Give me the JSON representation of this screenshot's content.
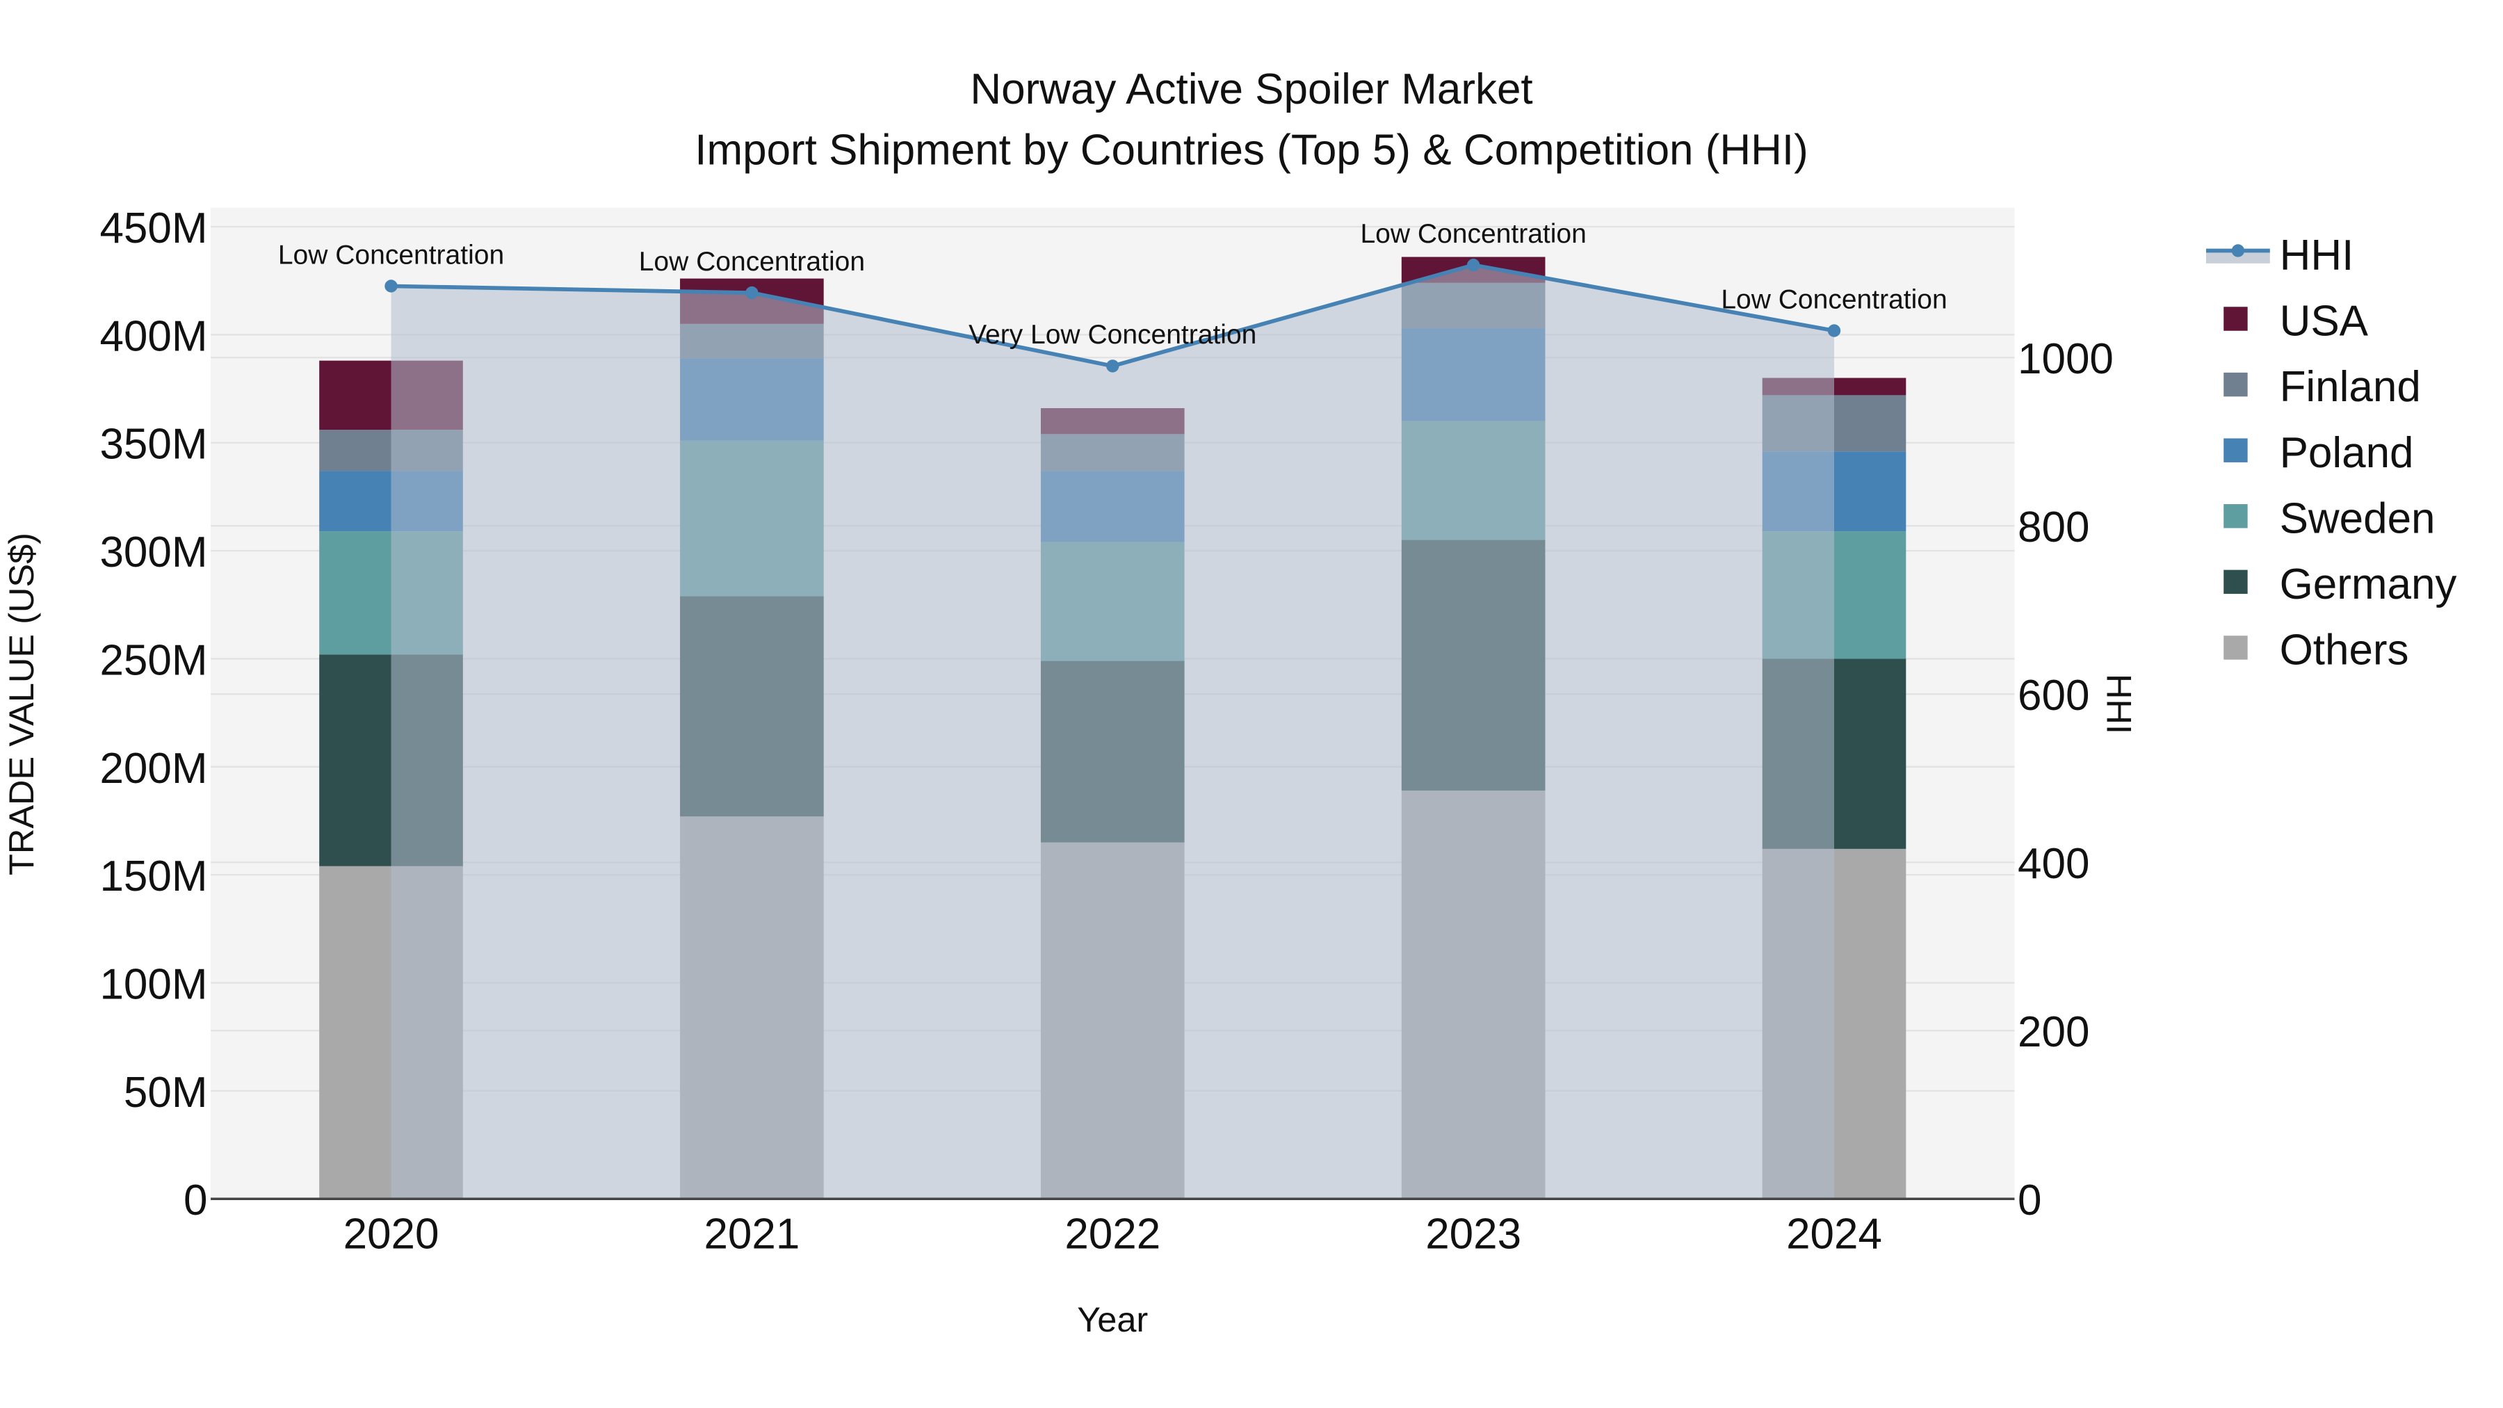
{
  "title": {
    "line1": "Norway Active Spoiler Market",
    "line2": "Import Shipment by Countries (Top 5) & Competition (HHI)"
  },
  "axes": {
    "x_title": "Year",
    "y_left_title": "TRADE VALUE (US$)",
    "y_right_title": "HHI",
    "y_left_ticks": [
      "0",
      "50M",
      "100M",
      "150M",
      "200M",
      "250M",
      "300M",
      "350M",
      "400M",
      "450M"
    ],
    "y_right_ticks": [
      "0",
      "200",
      "400",
      "600",
      "800",
      "1000"
    ],
    "x_ticks": [
      "2020",
      "2021",
      "2022",
      "2023",
      "2024"
    ]
  },
  "legend": {
    "items": [
      {
        "label": "HHI",
        "type": "line",
        "color": "#4682b4"
      },
      {
        "label": "USA",
        "type": "box",
        "color": "#601436"
      },
      {
        "label": "Finland",
        "type": "box",
        "color": "#708090"
      },
      {
        "label": "Poland",
        "type": "box",
        "color": "#4682b4"
      },
      {
        "label": "Sweden",
        "type": "box",
        "color": "#5f9ea0"
      },
      {
        "label": "Germany",
        "type": "box",
        "color": "#2f4f4f"
      },
      {
        "label": "Others",
        "type": "box",
        "color": "#a9a9a9"
      }
    ]
  },
  "annotations": [
    "Low Concentration",
    "Low Concentration",
    "Very Low Concentration",
    "Low Concentration",
    "Low Concentration"
  ],
  "colors": {
    "plot_bg": "#f4f4f4",
    "grid": "#e2e2e2",
    "hhi_line": "#4682b4",
    "hhi_fill": "rgba(176,190,206,0.55)"
  },
  "chart_data": {
    "type": "bar",
    "stacked": true,
    "title": "Norway Active Spoiler Market — Import Shipment by Countries (Top 5) & Competition (HHI)",
    "xlabel": "Year",
    "ylabel": "TRADE VALUE (US$)",
    "y2label": "HHI",
    "ylim": [
      0,
      450000000
    ],
    "y2lim": [
      0,
      1180
    ],
    "legend_position": "right",
    "grid": true,
    "categories": [
      "2020",
      "2021",
      "2022",
      "2023",
      "2024"
    ],
    "series": [
      {
        "name": "Others",
        "color": "#a9a9a9",
        "values": [
          154000000,
          177000000,
          165000000,
          189000000,
          162000000
        ]
      },
      {
        "name": "Germany",
        "color": "#2f4f4f",
        "values": [
          98000000,
          102000000,
          84000000,
          116000000,
          88000000
        ]
      },
      {
        "name": "Sweden",
        "color": "#5f9ea0",
        "values": [
          57000000,
          72000000,
          55000000,
          55000000,
          59000000
        ]
      },
      {
        "name": "Poland",
        "color": "#4682b4",
        "values": [
          28000000,
          38000000,
          33000000,
          43000000,
          37000000
        ]
      },
      {
        "name": "Finland",
        "color": "#708090",
        "values": [
          19000000,
          16000000,
          17000000,
          21000000,
          26000000
        ]
      },
      {
        "name": "USA",
        "color": "#601436",
        "values": [
          32000000,
          21000000,
          12000000,
          12000000,
          8000000
        ]
      }
    ],
    "line_series": {
      "name": "HHI",
      "axis": "right",
      "color": "#4682b4",
      "fill": "tozeroy",
      "values": [
        1085,
        1077,
        990,
        1110,
        1032
      ],
      "labels": [
        "Low Concentration",
        "Low Concentration",
        "Very Low Concentration",
        "Low Concentration",
        "Low Concentration"
      ]
    }
  }
}
